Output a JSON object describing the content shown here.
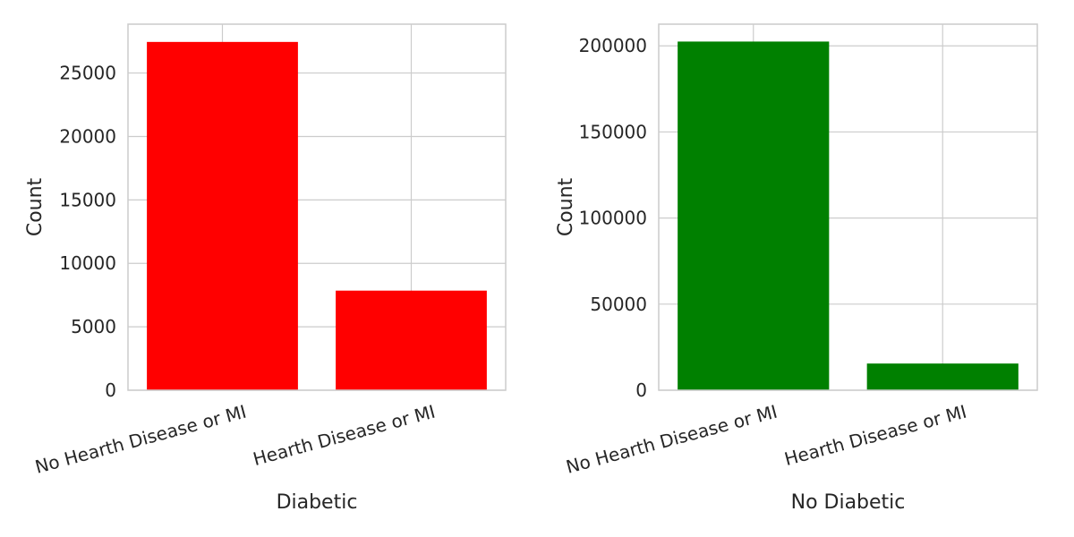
{
  "chart_data": [
    {
      "type": "bar",
      "title": "",
      "categories": [
        "No Hearth Disease or MI",
        "Hearth Disease or MI"
      ],
      "values": [
        27450,
        7850
      ],
      "xlabel": "Diabetic",
      "ylabel": "Count",
      "ylim": [
        0,
        28850
      ],
      "yticks": [
        0,
        5000,
        10000,
        15000,
        20000,
        25000
      ],
      "bar_color": "#ff0000",
      "grid": true
    },
    {
      "type": "bar",
      "title": "",
      "categories": [
        "No Hearth Disease or MI",
        "Hearth Disease or MI"
      ],
      "values": [
        202500,
        15500
      ],
      "xlabel": "No Diabetic",
      "ylabel": "Count",
      "ylim": [
        0,
        212600
      ],
      "yticks": [
        0,
        50000,
        100000,
        150000,
        200000
      ],
      "bar_color": "#008000",
      "grid": true
    }
  ]
}
